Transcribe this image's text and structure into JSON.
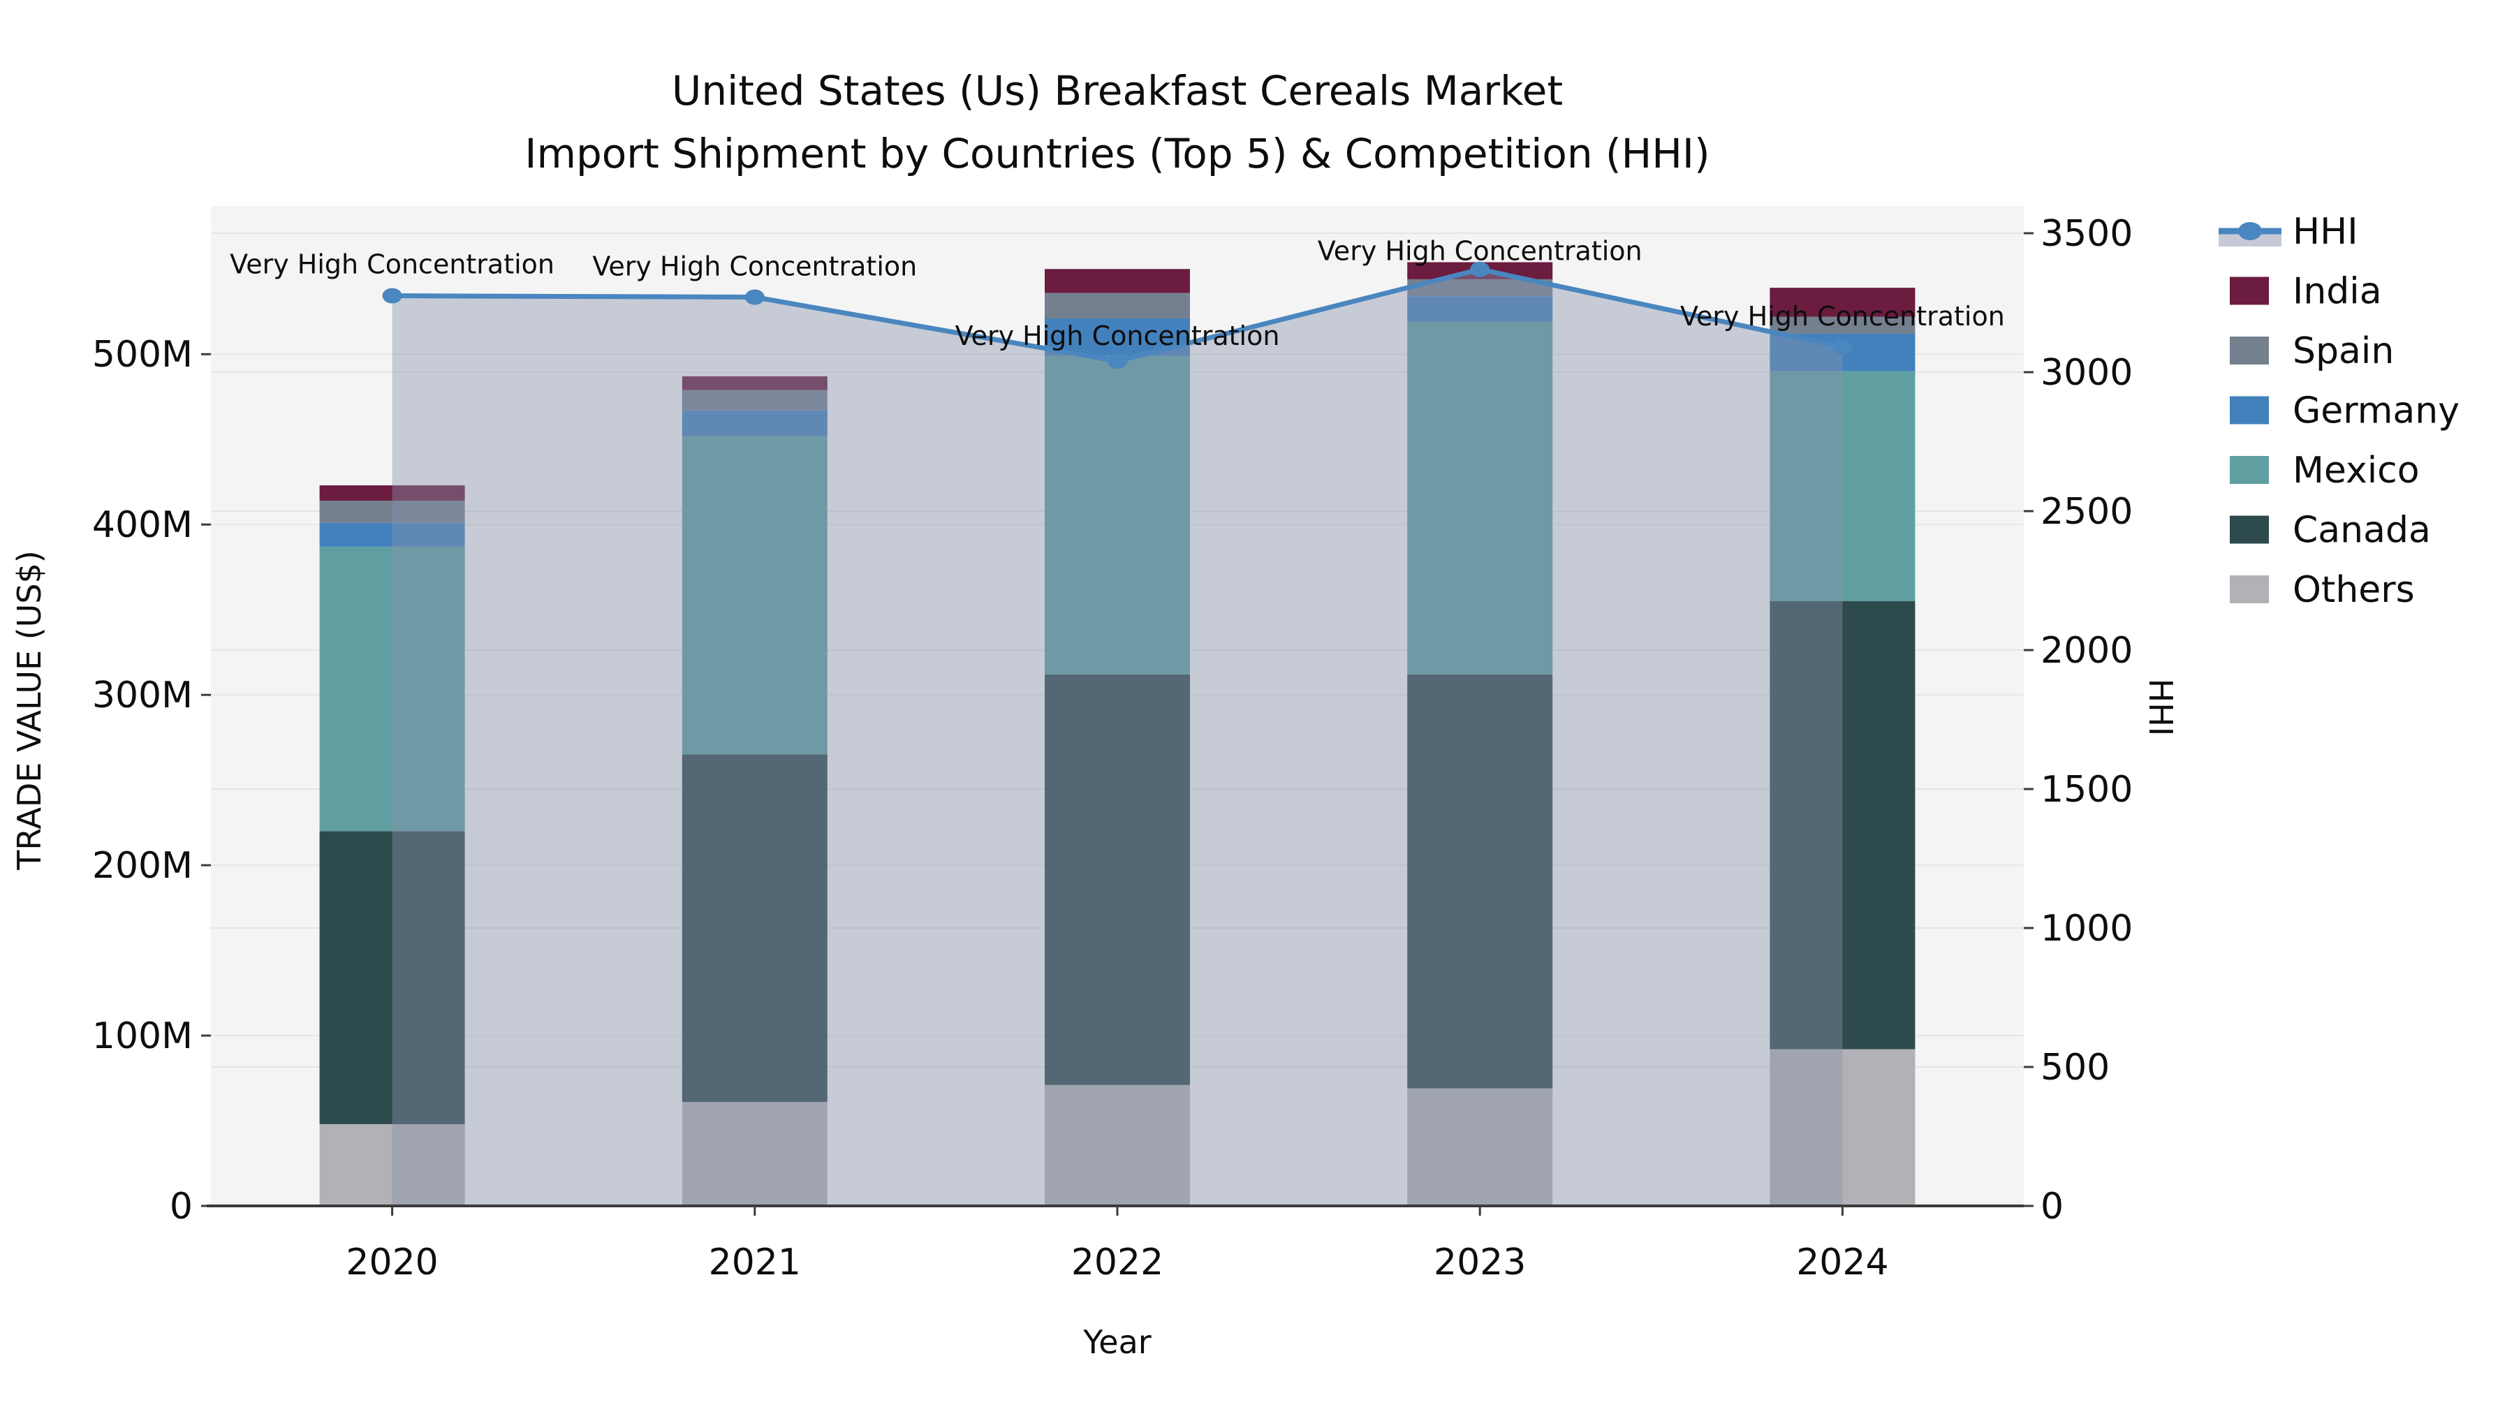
{
  "title": {
    "line1": "United States (Us) Breakfast Cereals Market",
    "line2": "Import Shipment by Countries (Top 5) & Competition (HHI)"
  },
  "axes": {
    "y_left_label": "TRADE VALUE (US$)",
    "y_left_ticks": [
      {
        "label": "0",
        "value": 0
      },
      {
        "label": "100M",
        "value": 100
      },
      {
        "label": "200M",
        "value": 200
      },
      {
        "label": "300M",
        "value": 300
      },
      {
        "label": "400M",
        "value": 400
      },
      {
        "label": "500M",
        "value": 500
      }
    ],
    "y_right_label": "HHI",
    "y_right_ticks": [
      {
        "label": "0",
        "value": 0
      },
      {
        "label": "500",
        "value": 500
      },
      {
        "label": "1000",
        "value": 1000
      },
      {
        "label": "1500",
        "value": 1500
      },
      {
        "label": "2000",
        "value": 2000
      },
      {
        "label": "2500",
        "value": 2500
      },
      {
        "label": "3000",
        "value": 3000
      },
      {
        "label": "3500",
        "value": 3500
      }
    ],
    "x_label": "Year"
  },
  "chart_data": {
    "type": "bar+line",
    "categories": [
      "2020",
      "2021",
      "2022",
      "2023",
      "2024"
    ],
    "bar_value_unit": "million US$",
    "ylim_left": [
      0,
      587
    ],
    "ylim_right": [
      0,
      3598
    ],
    "grid": true,
    "series": [
      {
        "name": "Others",
        "color": "#b2b1b5",
        "values": [
          48,
          61,
          71,
          69,
          92
        ]
      },
      {
        "name": "Canada",
        "color": "#2d4b4d",
        "values": [
          172,
          204,
          241,
          243,
          263
        ]
      },
      {
        "name": "Mexico",
        "color": "#5f9fa2",
        "values": [
          167,
          187,
          187,
          207,
          135
        ]
      },
      {
        "name": "Germany",
        "color": "#4381bc",
        "values": [
          14,
          15,
          22,
          15,
          22
        ]
      },
      {
        "name": "Spain",
        "color": "#75808f",
        "values": [
          13,
          12,
          15,
          10,
          10
        ]
      },
      {
        "name": "India",
        "color": "#6b1c3f",
        "values": [
          9,
          8,
          14,
          10,
          17
        ]
      }
    ],
    "line": {
      "name": "HHI",
      "color": "#4a86bf",
      "area_fill": "rgba(135,145,172,0.42)",
      "values": [
        3275,
        3270,
        3040,
        3370,
        3090
      ]
    },
    "annotations": [
      {
        "text": "Very High Concentration",
        "dy": -45
      },
      {
        "text": "Very High Concentration",
        "dy": -44
      },
      {
        "text": "Very High Concentration",
        "dy": -36
      },
      {
        "text": "Very High Concentration",
        "dy": -26
      },
      {
        "text": "Very High Concentration",
        "dy": -44
      }
    ],
    "legend_position": "right"
  },
  "legend": {
    "items": [
      {
        "label": "HHI",
        "type": "line",
        "color": "#4a86bf",
        "fill": "#c6cad6"
      },
      {
        "label": "India",
        "type": "swatch",
        "color": "#6b1c3f"
      },
      {
        "label": "Spain",
        "type": "swatch",
        "color": "#75808f"
      },
      {
        "label": "Germany",
        "type": "swatch",
        "color": "#4381bc"
      },
      {
        "label": "Mexico",
        "type": "swatch",
        "color": "#5f9fa2"
      },
      {
        "label": "Canada",
        "type": "swatch",
        "color": "#2d4b4d"
      },
      {
        "label": "Others",
        "type": "swatch",
        "color": "#b2b1b5"
      }
    ]
  },
  "colors": {
    "plot_background": "#f4f4f5",
    "grid_left": "#e7e7e9",
    "grid_right": "#e2e4e9",
    "axis_line": "#3b3b3b"
  }
}
